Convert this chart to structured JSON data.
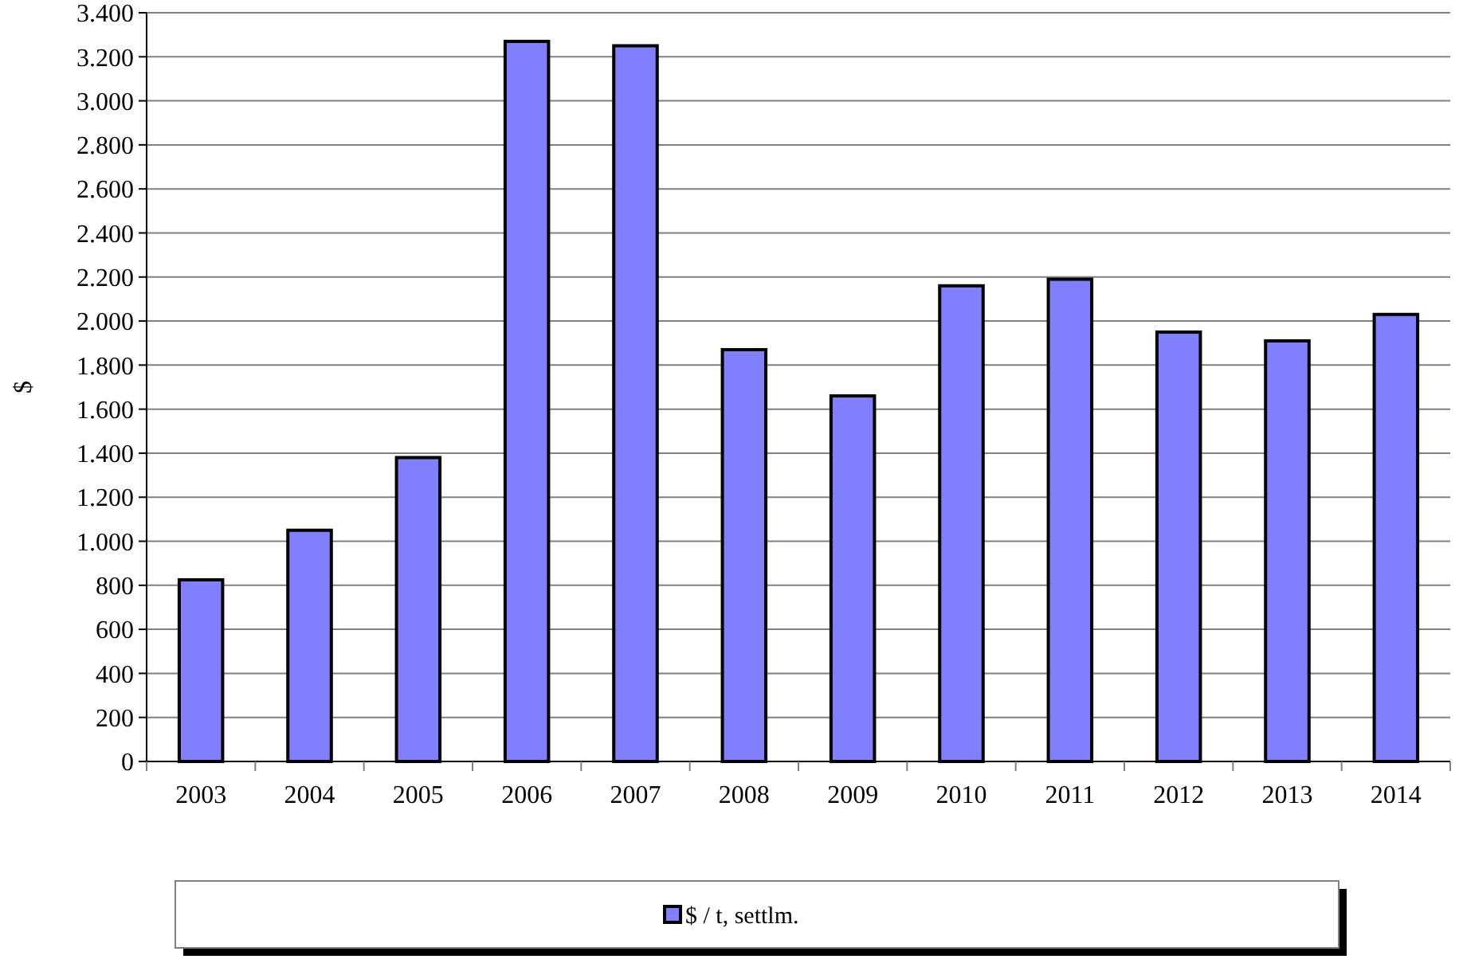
{
  "chart_data": {
    "type": "bar",
    "ylabel": "$",
    "categories": [
      "2003",
      "2004",
      "2005",
      "2006",
      "2007",
      "2008",
      "2009",
      "2010",
      "2011",
      "2012",
      "2013",
      "2014"
    ],
    "series": [
      {
        "name": "$ / t, settlm.",
        "color": "#8080ff",
        "values": [
          825,
          1050,
          1380,
          3270,
          3250,
          1870,
          1660,
          2160,
          2190,
          1950,
          1910,
          2030
        ]
      }
    ],
    "ylim": [
      0,
      3400
    ],
    "yticks": [
      {
        "value": 0,
        "label": "0"
      },
      {
        "value": 200,
        "label": "200"
      },
      {
        "value": 400,
        "label": "400"
      },
      {
        "value": 600,
        "label": "600"
      },
      {
        "value": 800,
        "label": "800"
      },
      {
        "value": 1000,
        "label": "1.000"
      },
      {
        "value": 1200,
        "label": "1.200"
      },
      {
        "value": 1400,
        "label": "1.400"
      },
      {
        "value": 1600,
        "label": "1.600"
      },
      {
        "value": 1800,
        "label": "1.800"
      },
      {
        "value": 2000,
        "label": "2.000"
      },
      {
        "value": 2200,
        "label": "2.200"
      },
      {
        "value": 2400,
        "label": "2.400"
      },
      {
        "value": 2600,
        "label": "2.600"
      },
      {
        "value": 2800,
        "label": "2.800"
      },
      {
        "value": 3000,
        "label": "3.000"
      },
      {
        "value": 3200,
        "label": "3.200"
      },
      {
        "value": 3400,
        "label": "3.400"
      }
    ],
    "grid": "y",
    "legend": "bottom"
  }
}
